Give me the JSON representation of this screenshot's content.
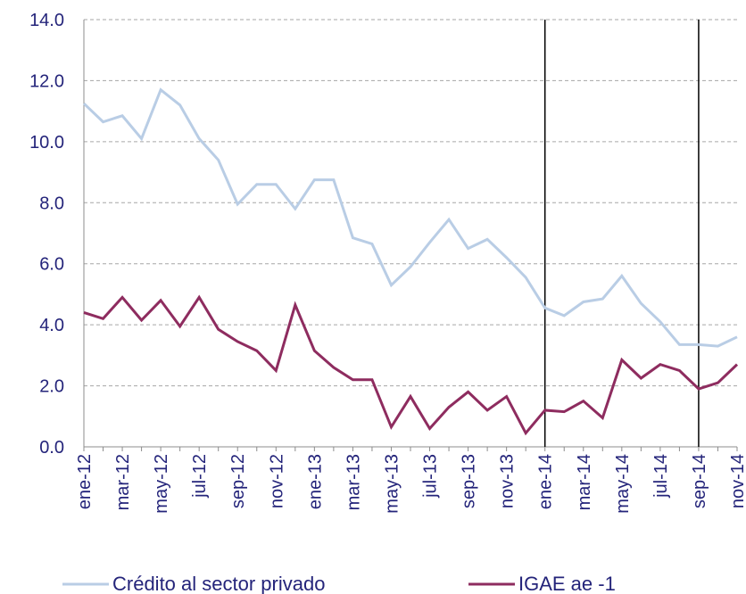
{
  "chart_data": {
    "type": "line",
    "categories": [
      "ene-12",
      null,
      "mar-12",
      null,
      "may-12",
      null,
      "jul-12",
      null,
      "sep-12",
      null,
      "nov-12",
      null,
      "ene-13",
      null,
      "mar-13",
      null,
      "may-13",
      null,
      "jul-13",
      null,
      "sep-13",
      null,
      "nov-13",
      null,
      "ene-14",
      null,
      "mar-14",
      null,
      "may-14",
      null,
      "jul-14",
      null,
      "sep-14",
      null,
      "nov-14"
    ],
    "series": [
      {
        "name": "Crédito al sector privado",
        "color": "#b9cde5",
        "values": [
          11.25,
          10.65,
          10.85,
          10.1,
          11.7,
          11.2,
          10.1,
          9.4,
          7.95,
          8.6,
          8.6,
          7.8,
          8.75,
          8.75,
          6.85,
          6.65,
          5.3,
          5.9,
          6.7,
          7.45,
          6.5,
          6.8,
          6.2,
          5.55,
          4.55,
          4.3,
          4.75,
          4.85,
          5.6,
          4.7,
          4.1,
          3.35,
          3.35,
          3.3,
          3.6
        ]
      },
      {
        "name": "IGAE ae -1",
        "color": "#8e2c5f",
        "values": [
          4.4,
          4.2,
          4.9,
          4.15,
          4.8,
          3.95,
          4.9,
          3.85,
          3.45,
          3.15,
          2.5,
          4.65,
          3.15,
          2.6,
          2.2,
          2.2,
          0.65,
          1.65,
          0.6,
          1.3,
          1.8,
          1.2,
          1.65,
          0.45,
          1.2,
          1.15,
          1.5,
          0.95,
          2.85,
          2.25,
          2.7,
          2.5,
          1.9,
          2.1,
          2.7
        ]
      }
    ],
    "ylim": [
      0,
      14
    ],
    "yticks": [
      {
        "value": 0,
        "label": "0.0"
      },
      {
        "value": 2,
        "label": "2.0"
      },
      {
        "value": 4,
        "label": "4.0"
      },
      {
        "value": 6,
        "label": "6.0"
      },
      {
        "value": 8,
        "label": "8.0"
      },
      {
        "value": 10,
        "label": "10.0"
      },
      {
        "value": 12,
        "label": "12.0"
      },
      {
        "value": 14,
        "label": "14.0"
      }
    ],
    "grid": true,
    "vertical_lines": [
      "ene-14",
      "sep-14"
    ],
    "legend": "bottom"
  }
}
